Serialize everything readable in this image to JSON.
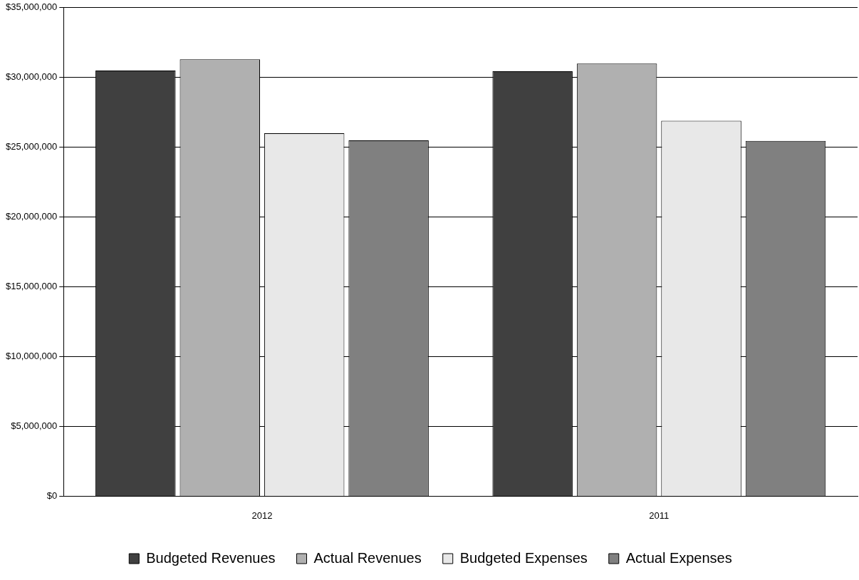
{
  "chart_data": {
    "type": "bar",
    "categories": [
      "2012",
      "2011"
    ],
    "series": [
      {
        "name": "Budgeted Revenues",
        "color": "#404040",
        "values": [
          30500000,
          30450000
        ]
      },
      {
        "name": "Actual Revenues",
        "color": "#b0b0b0",
        "values": [
          31300000,
          31000000
        ]
      },
      {
        "name": "Budgeted Expenses",
        "color": "#e8e8e8",
        "values": [
          26000000,
          26900000
        ]
      },
      {
        "name": "Actual Expenses",
        "color": "#808080",
        "values": [
          25500000,
          25450000
        ]
      }
    ],
    "ylim": [
      0,
      35000000
    ],
    "yticks": [
      {
        "value": 0,
        "label": "$0"
      },
      {
        "value": 5000000,
        "label": "$5,000,000"
      },
      {
        "value": 10000000,
        "label": "$10,000,000"
      },
      {
        "value": 15000000,
        "label": "$15,000,000"
      },
      {
        "value": 20000000,
        "label": "$20,000,000"
      },
      {
        "value": 25000000,
        "label": "$25,000,000"
      },
      {
        "value": 30000000,
        "label": "$30,000,000"
      },
      {
        "value": 35000000,
        "label": "$35,000,000"
      }
    ],
    "grid": "y",
    "legend": "bottom"
  }
}
